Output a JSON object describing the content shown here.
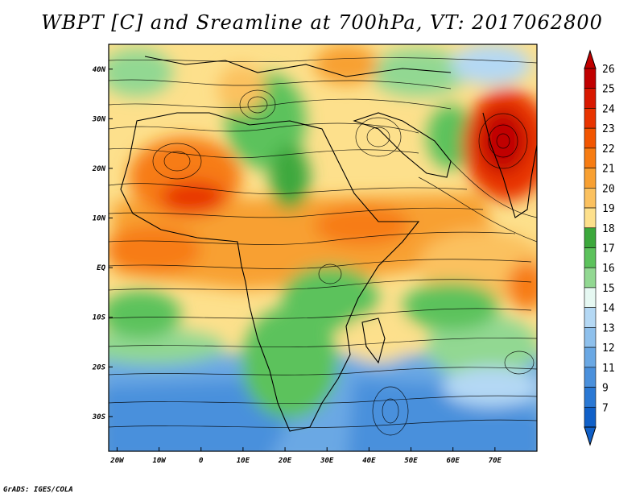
{
  "title": "WBPT [C] and Sreamline at 700hPa, VT: 2017062800",
  "credit": "GrADS: IGES/COLA",
  "map": {
    "lon_range": [
      -22,
      80
    ],
    "lat_range": [
      -37,
      45
    ],
    "lat_labels": [
      "40N",
      "30N",
      "20N",
      "10N",
      "EQ",
      "10S",
      "20S",
      "30S"
    ],
    "lat_values": [
      40,
      30,
      20,
      10,
      0,
      -10,
      -20,
      -30
    ],
    "lon_labels": [
      "20W",
      "10W",
      "0",
      "10E",
      "20E",
      "30E",
      "40E",
      "50E",
      "60E",
      "70E"
    ],
    "lon_values": [
      -20,
      -10,
      0,
      10,
      20,
      30,
      40,
      50,
      60,
      70
    ]
  },
  "colorbar": {
    "labels": [
      "26",
      "25",
      "24",
      "23",
      "22",
      "21",
      "20",
      "19",
      "18",
      "17",
      "16",
      "15",
      "14",
      "13",
      "12",
      "11",
      "9",
      "7"
    ],
    "colors": [
      "#c00000",
      "#d81800",
      "#e83400",
      "#f25500",
      "#f77c12",
      "#f8a032",
      "#fbc15f",
      "#fde08c",
      "#3ca83c",
      "#5cc25c",
      "#92d892",
      "#e6f8f2",
      "#b4d8f4",
      "#8ec0ec",
      "#6aa8e4",
      "#4a90dc",
      "#2a78d4",
      "#1060c8"
    ]
  },
  "colors": {
    "warm_core": "#cc1a00",
    "cool_south": "#4d8fdc",
    "green_band": "#5cc25c"
  }
}
